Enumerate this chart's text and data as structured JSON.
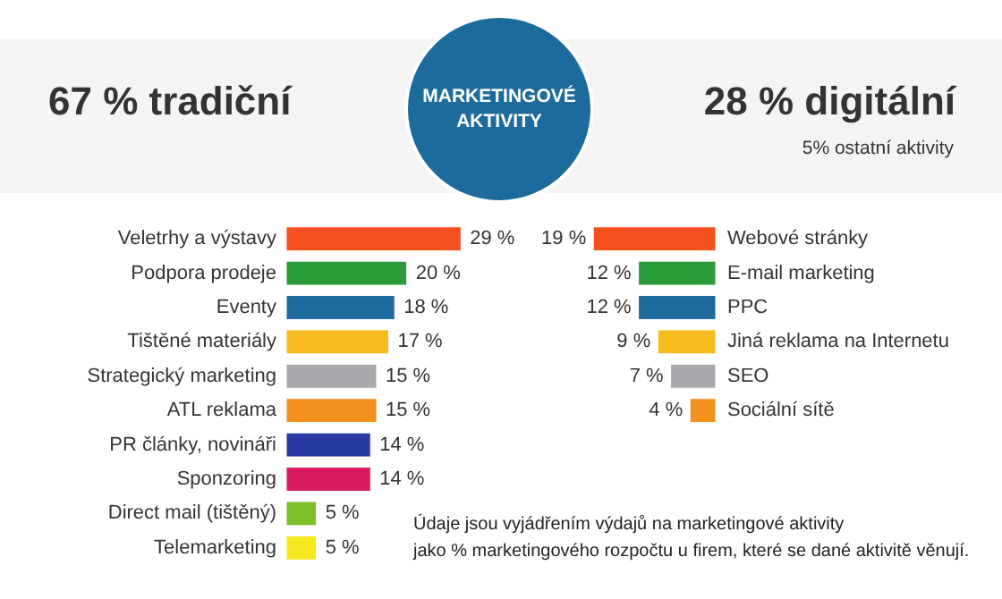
{
  "chart_data": [
    {
      "type": "bar",
      "orientation": "horizontal",
      "title": "67 % tradiční",
      "annotations": [
        "MARKETINGOVÉ AKTIVITY"
      ],
      "categories": [
        "Veletrhy a výstavy",
        "Podpora prodeje",
        "Eventy",
        "Tištěné materiály",
        "Strategický marketing",
        "ATL reklama",
        "PR články, novináři",
        "Sponzoring",
        "Direct mail (tištěný)",
        "Telemarketing"
      ],
      "values": [
        29,
        20,
        18,
        17,
        15,
        15,
        14,
        14,
        5,
        5
      ],
      "colors": [
        "#f4511e",
        "#2a9d3a",
        "#1c6b9c",
        "#f5bb1e",
        "#a7a9ac",
        "#f4901e",
        "#2b3aa0",
        "#d81b60",
        "#7cbf2a",
        "#f5e81e"
      ],
      "value_labels": [
        "29 %",
        "20 %",
        "18 %",
        "17 %",
        "15 %",
        "15 %",
        "14 %",
        "14 %",
        "5 %",
        "5 %"
      ],
      "xlim": [
        0,
        30
      ],
      "tick_labels": "y"
    },
    {
      "type": "bar",
      "orientation": "horizontal",
      "title": "28 % digitální",
      "subtitle": "5% ostatní aktivity",
      "annotations": [
        "Údaje jsou vyjádřením výdajů na marketingové aktivity",
        "jako % marketingového rozpočtu u firem, které se dané aktivitě věnují."
      ],
      "categories": [
        "Webové stránky",
        "E-mail marketing",
        "PPC",
        "Jiná reklama na Internetu",
        "SEO",
        "Sociální sítě"
      ],
      "values": [
        19,
        12,
        12,
        9,
        7,
        4
      ],
      "colors": [
        "#f4511e",
        "#2a9d3a",
        "#1c6b9c",
        "#f5bb1e",
        "#a7a9ac",
        "#f4901e"
      ],
      "value_labels": [
        "19 %",
        "12 %",
        "12 %",
        "9 %",
        "7 %",
        "4 %"
      ],
      "xlim": [
        20,
        0
      ],
      "tick_labels": "y"
    }
  ]
}
